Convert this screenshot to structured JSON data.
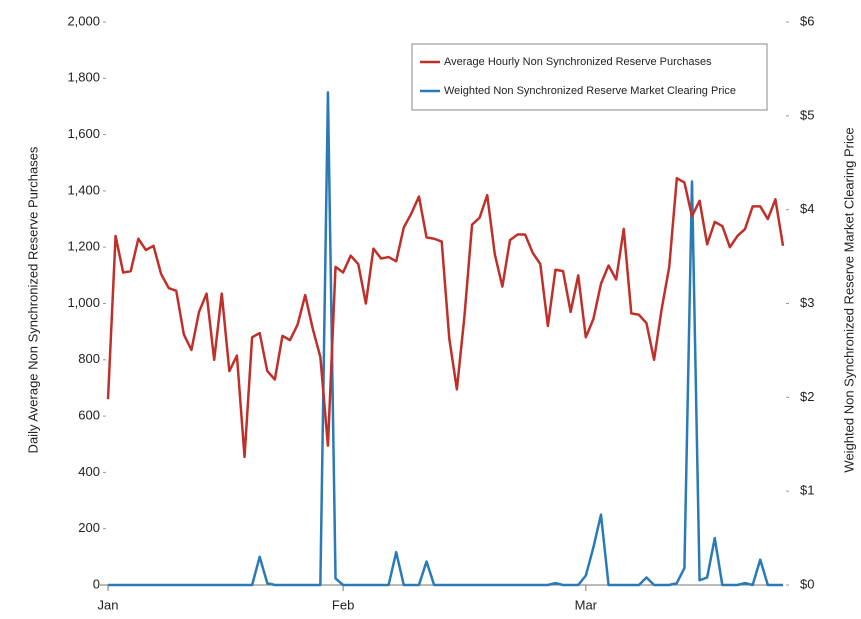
{
  "chart_data": {
    "type": "line",
    "y_label": "Daily Average Non Synchronized Reserve Purchases",
    "y2_label": "Weighted Non Synchronized Reserve Market Clearing Price",
    "categories": [
      "Jan",
      null,
      null,
      null,
      null,
      null,
      null,
      null,
      null,
      null,
      null,
      null,
      null,
      null,
      null,
      null,
      null,
      null,
      null,
      null,
      null,
      null,
      null,
      null,
      null,
      null,
      null,
      null,
      null,
      null,
      null,
      "Feb",
      null,
      null,
      null,
      null,
      null,
      null,
      null,
      null,
      null,
      null,
      null,
      null,
      null,
      null,
      null,
      null,
      null,
      null,
      null,
      null,
      null,
      null,
      null,
      null,
      null,
      null,
      null,
      null,
      null,
      null,
      null,
      "Mar",
      null,
      null,
      null,
      null,
      null,
      null,
      null,
      null,
      null,
      null,
      null,
      null,
      null,
      null,
      null,
      null,
      null,
      null,
      null,
      null,
      null,
      null,
      null,
      null,
      null,
      null
    ],
    "series": [
      {
        "name": "Average Hourly Non Synchronized Reserve Purchases",
        "color": "#c0302a",
        "values": [
          660,
          1240,
          1110,
          1115,
          1230,
          1190,
          1205,
          1105,
          1055,
          1045,
          890,
          835,
          970,
          1035,
          800,
          1035,
          760,
          815,
          455,
          880,
          895,
          760,
          730,
          885,
          870,
          925,
          1030,
          910,
          810,
          495,
          1130,
          1110,
          1170,
          1140,
          1000,
          1195,
          1160,
          1165,
          1150,
          1270,
          1320,
          1380,
          1235,
          1230,
          1220,
          875,
          695,
          955,
          1280,
          1305,
          1385,
          1175,
          1060,
          1225,
          1245,
          1245,
          1180,
          1140,
          920,
          1120,
          1115,
          970,
          1100,
          880,
          945,
          1070,
          1135,
          1085,
          1265,
          965,
          960,
          930,
          800,
          980,
          1130,
          1445,
          1430,
          1310,
          1365,
          1210,
          1290,
          1275,
          1200,
          1240,
          1265,
          1345,
          1345,
          1300,
          1370,
          1205
        ]
      },
      {
        "name": "Weighted Non Synchronized Reserve Market Clearing Price",
        "color": "#2a7ab8",
        "axis": "y2",
        "values": [
          0,
          0,
          0,
          0,
          0,
          0,
          0,
          0,
          0,
          0,
          0,
          0,
          0,
          0,
          0,
          0,
          0,
          0,
          0,
          0,
          0.3,
          0.02,
          0,
          0,
          0,
          0,
          0,
          0,
          0,
          5.25,
          0.07,
          0,
          0,
          0,
          0,
          0,
          0,
          0,
          0.35,
          0,
          0,
          0,
          0.25,
          0,
          0,
          0,
          0,
          0,
          0,
          0,
          0,
          0,
          0,
          0,
          0,
          0,
          0,
          0,
          0,
          0.02,
          0,
          0,
          0,
          0.1,
          0.4,
          0.75,
          0,
          0,
          0,
          0,
          0,
          0.08,
          0,
          0,
          0,
          0.02,
          0.18,
          4.3,
          0.05,
          0.08,
          0.5,
          0,
          0,
          0,
          0.02,
          0,
          0.27,
          0,
          0,
          0
        ]
      }
    ],
    "ylim": [
      0,
      2000
    ],
    "yticks": [
      0,
      200,
      400,
      600,
      800,
      {
        "value": 1000,
        "label": "1,000"
      },
      {
        "value": 1200,
        "label": "1,200"
      },
      {
        "value": 1400,
        "label": "1,400"
      },
      {
        "value": 1600,
        "label": "1,600"
      },
      {
        "value": 1800,
        "label": "1,800"
      },
      {
        "value": 2000,
        "label": "2,000"
      }
    ],
    "y2lim": [
      0,
      6
    ],
    "y2ticks": [
      {
        "value": 0,
        "label": "$0"
      },
      {
        "value": 1,
        "label": "$1"
      },
      {
        "value": 2,
        "label": "$2"
      },
      {
        "value": 3,
        "label": "$3"
      },
      {
        "value": 4,
        "label": "$4"
      },
      {
        "value": 5,
        "label": "$5"
      },
      {
        "value": 6,
        "label": "$6"
      }
    ],
    "legend": "upper right"
  }
}
